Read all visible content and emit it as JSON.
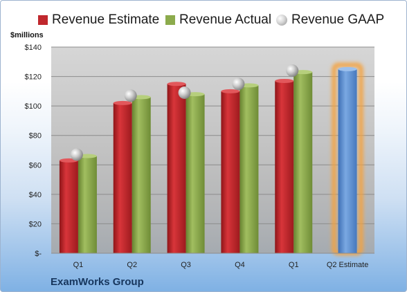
{
  "chart_data": {
    "type": "bar",
    "categories": [
      "Q1",
      "Q2",
      "Q3",
      "Q4",
      "Q1",
      "Q2 Estimate"
    ],
    "series": [
      {
        "name": "Revenue Estimate",
        "color": "#c0282d",
        "values": [
          63,
          102,
          115,
          110,
          117,
          null
        ]
      },
      {
        "name": "Revenue Actual",
        "color": "#8cab4c",
        "values": [
          66,
          106,
          108,
          114,
          123,
          null
        ]
      },
      {
        "name": "Revenue GAAP",
        "marker": "sphere",
        "values": [
          67,
          107,
          109,
          115,
          124,
          null
        ]
      },
      {
        "color": "#5b8fd0",
        "highlight": "#f5a23c",
        "values": [
          null,
          null,
          null,
          null,
          null,
          125
        ]
      }
    ],
    "ylabel": "$millions",
    "ylim": [
      0,
      140
    ],
    "yticks": [
      0,
      20,
      40,
      60,
      80,
      100,
      120,
      140
    ],
    "ytick_labels": [
      "$-",
      "$20",
      "$40",
      "$60",
      "$80",
      "$100",
      "$120",
      "$140"
    ],
    "grid": true,
    "legend_position": "top"
  },
  "legend": {
    "estimate": "Revenue Estimate",
    "actual": "Revenue Actual",
    "gaap": "Revenue GAAP"
  },
  "company": "ExamWorks Group"
}
